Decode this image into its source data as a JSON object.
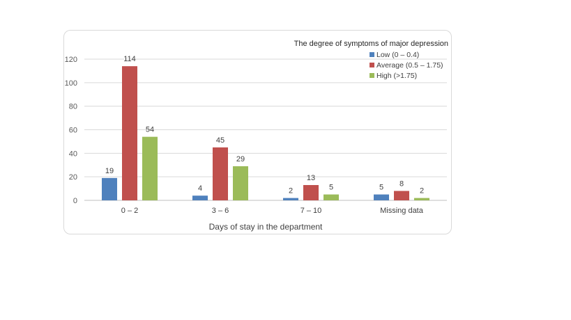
{
  "chart_data": {
    "type": "bar",
    "categories": [
      "0 – 2",
      "3 – 6",
      "7 – 10",
      "Missing data"
    ],
    "series": [
      {
        "name": "Low (0 – 0.4)",
        "color": "#4f81bd",
        "values": [
          19,
          4,
          2,
          5
        ]
      },
      {
        "name": "Average (0.5 – 1.75)",
        "color": "#c0504d",
        "values": [
          114,
          45,
          13,
          8
        ]
      },
      {
        "name": "High (>1.75)",
        "color": "#9bbb59",
        "values": [
          54,
          29,
          5,
          2
        ]
      }
    ],
    "xlabel": "Days of stay in the department",
    "ylabel": "",
    "ylim": [
      0,
      120
    ],
    "yticks": [
      0,
      20,
      40,
      60,
      80,
      100,
      120
    ],
    "legend_title": "The degree of symptoms of major depression",
    "legend_position": "top-right",
    "grid": true
  }
}
